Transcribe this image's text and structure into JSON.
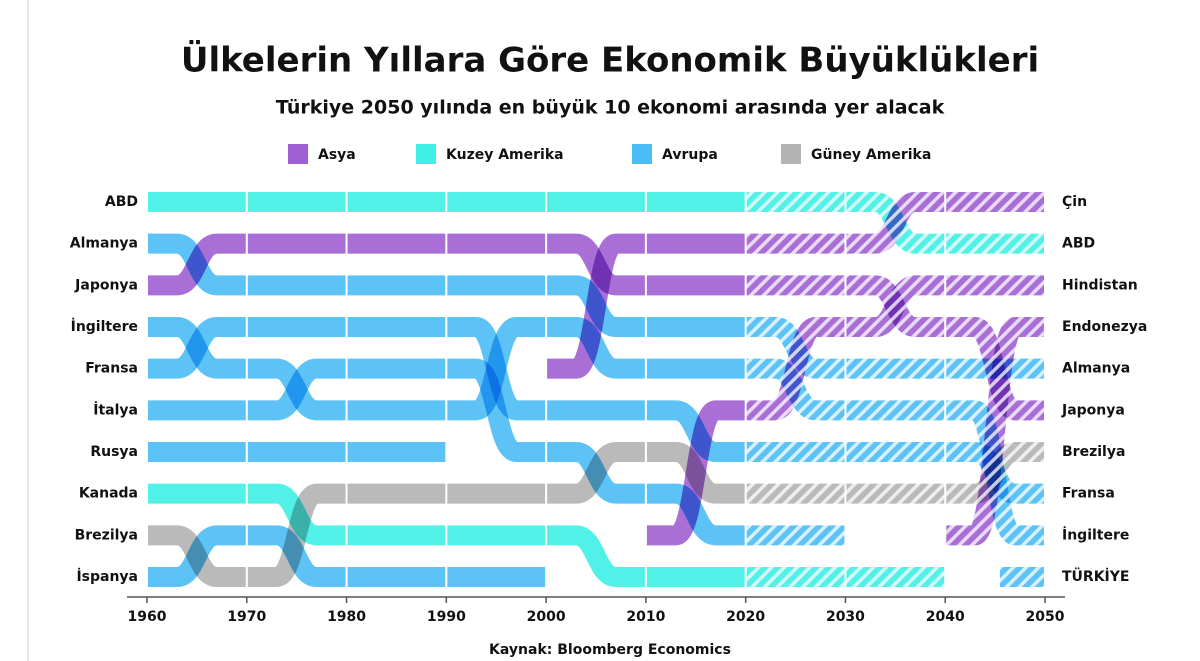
{
  "chart_data": {
    "type": "bump",
    "title": "Ülkelerin Yıllara Göre Ekonomik Büyüklükleri",
    "subtitle": "Türkiye 2050 yılında en büyük 10 ekonomi arasında yer alacak",
    "source": "Kaynak: Bloomberg Economics",
    "legend": [
      {
        "name": "Asya",
        "color": "#a05fd2"
      },
      {
        "name": "Kuzey Amerika",
        "color": "#3ef0e6"
      },
      {
        "name": "Avrupa",
        "color": "#4bbdf5"
      },
      {
        "name": "Güney Amerika",
        "color": "#b3b3b3"
      }
    ],
    "x": [
      1960,
      1970,
      1980,
      1990,
      2000,
      2010,
      2020,
      2030,
      2040,
      2050
    ],
    "xlim": [
      1960,
      2050
    ],
    "xticks": [
      1960,
      1970,
      1980,
      1990,
      2000,
      2010,
      2020,
      2030,
      2040,
      2050
    ],
    "ylim": [
      1,
      10
    ],
    "forecast_from": 2020,
    "series": [
      {
        "name": "ABD",
        "color": "#3ef0e6",
        "values": [
          1,
          1,
          1,
          1,
          1,
          1,
          1,
          1,
          2,
          2
        ]
      },
      {
        "name": "Almanya",
        "color": "#4bbdf5",
        "values": [
          2,
          3,
          3,
          3,
          3,
          4,
          4,
          5,
          5,
          5
        ]
      },
      {
        "name": "Japonya",
        "color": "#a05fd2",
        "values": [
          3,
          2,
          2,
          2,
          2,
          3,
          3,
          3,
          4,
          6
        ]
      },
      {
        "name": "İngiltere",
        "color": "#4bbdf5",
        "values": [
          4,
          5,
          6,
          6,
          4,
          5,
          5,
          6,
          6,
          9
        ]
      },
      {
        "name": "Fransa",
        "color": "#4bbdf5",
        "values": [
          5,
          4,
          4,
          4,
          6,
          6,
          7,
          7,
          7,
          8
        ]
      },
      {
        "name": "İtalya",
        "color": "#4bbdf5",
        "values": [
          6,
          6,
          5,
          5,
          7,
          8,
          9,
          9,
          null,
          null
        ]
      },
      {
        "name": "Rusya",
        "color": "#4bbdf5",
        "values": [
          7,
          7,
          7,
          7,
          null,
          null,
          null,
          null,
          null,
          null
        ]
      },
      {
        "name": "Kanada",
        "color": "#3ef0e6",
        "values": [
          8,
          8,
          9,
          9,
          9,
          10,
          10,
          10,
          10,
          null
        ]
      },
      {
        "name": "Brezilya",
        "color": "#b3b3b3",
        "values": [
          9,
          10,
          8,
          8,
          8,
          7,
          8,
          8,
          8,
          7
        ]
      },
      {
        "name": "İspanya",
        "color": "#4bbdf5",
        "values": [
          10,
          9,
          10,
          10,
          10,
          null,
          null,
          null,
          null,
          null
        ]
      },
      {
        "name": "Çin",
        "color": "#a05fd2",
        "values": [
          null,
          null,
          null,
          null,
          5,
          2,
          2,
          2,
          1,
          1
        ]
      },
      {
        "name": "Hindistan",
        "color": "#a05fd2",
        "values": [
          null,
          null,
          null,
          null,
          null,
          9,
          6,
          4,
          3,
          3
        ]
      },
      {
        "name": "Endonezya",
        "color": "#a05fd2",
        "values": [
          null,
          null,
          null,
          null,
          null,
          null,
          null,
          null,
          9,
          4
        ]
      },
      {
        "name": "TÜRKİYE",
        "color": "#4bbdf5",
        "values": [
          null,
          null,
          null,
          null,
          null,
          null,
          null,
          null,
          null,
          10
        ]
      }
    ]
  }
}
